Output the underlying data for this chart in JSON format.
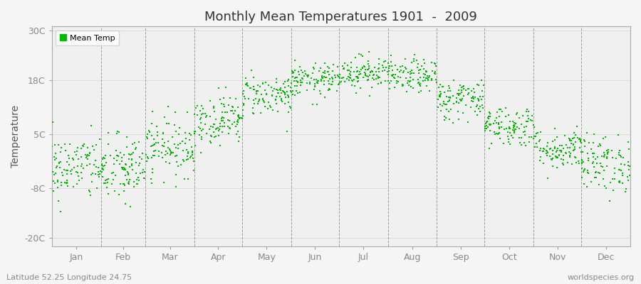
{
  "title": "Monthly Mean Temperatures 1901  -  2009",
  "ylabel": "Temperature",
  "xlabel_bottom_left": "Latitude 52.25 Longitude 24.75",
  "xlabel_bottom_right": "worldspecies.org",
  "legend_label": "Mean Temp",
  "dot_color": "#00bb00",
  "fig_bg_color": "#f5f5f5",
  "plot_bg_color": "#f0f0f0",
  "ylim": [
    -22,
    31
  ],
  "yticks": [
    -20,
    -8,
    5,
    18,
    30
  ],
  "ytick_labels": [
    "-20C",
    "-8C",
    "5C",
    "18C",
    "30C"
  ],
  "months": [
    "Jan",
    "Feb",
    "Mar",
    "Apr",
    "May",
    "Jun",
    "Jul",
    "Aug",
    "Sep",
    "Oct",
    "Nov",
    "Dec"
  ],
  "monthly_means": [
    -3.0,
    -3.5,
    2.0,
    8.5,
    14.5,
    18.0,
    20.0,
    19.0,
    13.5,
    7.0,
    1.5,
    -2.0
  ],
  "monthly_stds": [
    4.0,
    4.2,
    3.5,
    3.0,
    2.5,
    2.0,
    2.0,
    2.0,
    2.5,
    2.5,
    2.5,
    3.5
  ],
  "n_years": 109,
  "seed": 42,
  "figsize": [
    9.0,
    4.0
  ],
  "dpi": 100
}
